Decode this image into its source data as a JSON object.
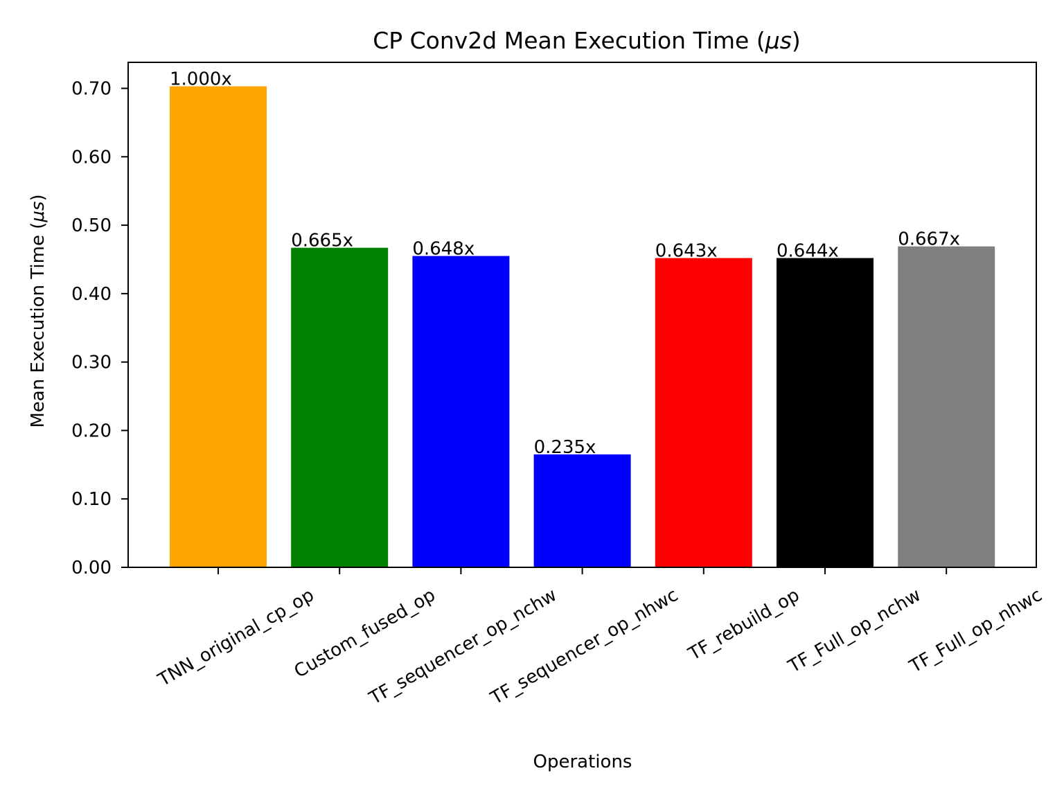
{
  "chart_data": {
    "type": "bar",
    "title_prefix": "CP Conv2d Mean Execution Time (",
    "title_unit": "μs",
    "title_suffix": ")",
    "xlabel": "Operations",
    "ylabel_prefix": "Mean Execution Time (",
    "ylabel_unit": "μs",
    "ylabel_suffix": ")",
    "categories": [
      "TNN_original_cp_op",
      "Custom_fused_op",
      "TF_sequencer_op_nchw",
      "TF_sequencer_op_nhwc",
      "TF_rebuild_op",
      "TF_Full_op_nchw",
      "TF_Full_op_nhwc"
    ],
    "values": [
      0.703,
      0.467,
      0.455,
      0.165,
      0.452,
      0.452,
      0.469
    ],
    "data_labels": [
      "1.000x",
      "0.665x",
      "0.648x",
      "0.235x",
      "0.643x",
      "0.644x",
      "0.667x"
    ],
    "colors": [
      "#FFA500",
      "#008000",
      "#0000FF",
      "#0000FF",
      "#FF0000",
      "#000000",
      "#808080"
    ],
    "ylim": [
      0,
      0.738
    ],
    "yticks": [
      0.0,
      0.1,
      0.2,
      0.3,
      0.4,
      0.5,
      0.6,
      0.7
    ],
    "ytick_labels": [
      "0.00",
      "0.10",
      "0.20",
      "0.30",
      "0.40",
      "0.50",
      "0.60",
      "0.70"
    ],
    "grid": false,
    "legend": "none"
  }
}
